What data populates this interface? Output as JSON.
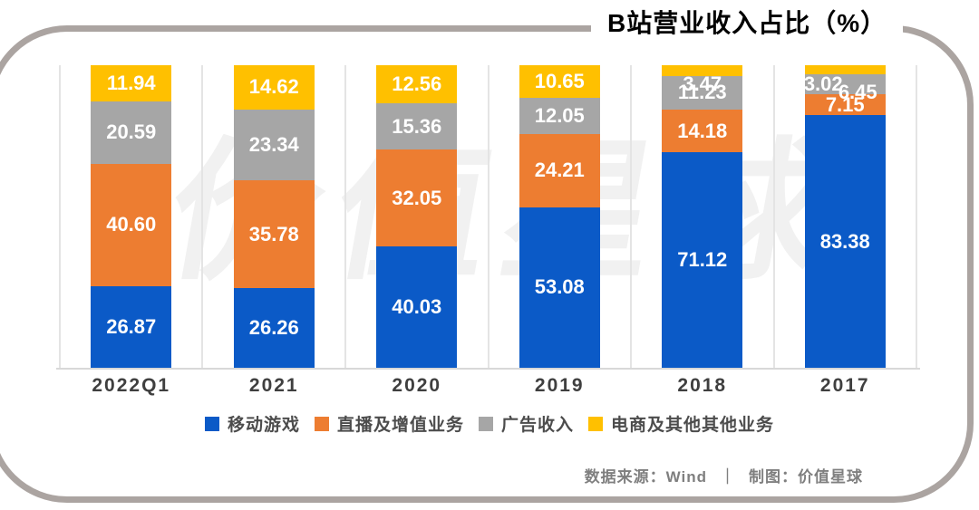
{
  "title": "B站营业收入占比（%）",
  "watermark": "价值星球",
  "chart_data": {
    "type": "bar",
    "stacked": true,
    "unit": "%",
    "ylim": [
      0,
      100
    ],
    "grid": "vertical-category-separators",
    "legend_position": "bottom",
    "value_labels_shown": true,
    "categories": [
      "2022Q1",
      "2021",
      "2020",
      "2019",
      "2018",
      "2017"
    ],
    "series": [
      {
        "key": "mobile-games",
        "name": "移动游戏",
        "color": "#0b5ac7",
        "values": [
          26.87,
          26.26,
          40.03,
          53.08,
          71.12,
          83.38
        ]
      },
      {
        "key": "live-vas",
        "name": "直播及增值业务",
        "color": "#ed7d31",
        "values": [
          40.6,
          35.78,
          32.05,
          24.21,
          14.18,
          7.15
        ]
      },
      {
        "key": "advertising",
        "name": "广告收入",
        "color": "#a6a6a6",
        "values": [
          20.59,
          23.34,
          15.36,
          12.05,
          11.23,
          6.45
        ]
      },
      {
        "key": "ecommerce-other",
        "name": "电商及其他其他业务",
        "color": "#ffc000",
        "values": [
          11.94,
          14.62,
          12.56,
          10.65,
          3.47,
          3.02
        ]
      }
    ]
  },
  "footer": {
    "source_label": "数据来源：Wind",
    "divider": "｜",
    "credit_label": "制图：价值星球"
  }
}
